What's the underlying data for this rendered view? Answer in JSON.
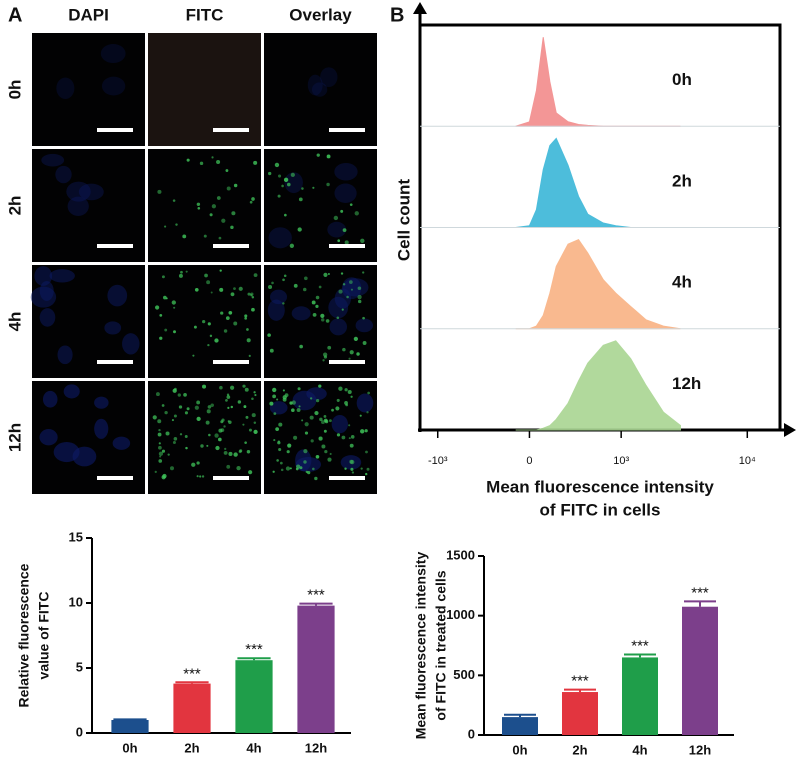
{
  "panel_labels": [
    "A",
    "B"
  ],
  "microscopy": {
    "columns": [
      "DAPI",
      "FITC",
      "Overlay"
    ],
    "rows": [
      "0h",
      "2h",
      "4h",
      "12h"
    ]
  },
  "chart_data": [
    {
      "type": "area",
      "ylabel": "Cell count",
      "xlabel": [
        "Mean fluorescence intensity",
        "of FITC in cells"
      ],
      "x": [
        -100,
        0,
        50,
        100,
        150,
        200,
        300,
        400,
        500,
        700,
        900,
        1200,
        1600,
        2200,
        3000
      ],
      "xlim": [
        -1400,
        18000
      ],
      "xticks": [
        {
          "value": -1000,
          "label": "-10³"
        },
        0,
        {
          "value": 1000,
          "label": "10³"
        },
        {
          "value": 10000,
          "label": "10⁴"
        }
      ],
      "ylim": [
        0,
        100
      ],
      "series": [
        {
          "name": "0h",
          "color": "#f28b8b",
          "values": [
            0,
            5,
            40,
            100,
            50,
            15,
            5,
            2,
            1,
            0,
            0,
            0,
            0,
            0,
            0
          ]
        },
        {
          "name": "2h",
          "color": "#3ab6d8",
          "values": [
            0,
            2,
            20,
            65,
            92,
            100,
            70,
            35,
            15,
            5,
            2,
            0,
            0,
            0,
            0
          ]
        },
        {
          "name": "4h",
          "color": "#f9b283",
          "values": [
            0,
            0,
            3,
            15,
            40,
            70,
            95,
            100,
            85,
            55,
            40,
            25,
            10,
            3,
            0
          ]
        },
        {
          "name": "12h",
          "color": "#a9d592",
          "values": [
            0,
            0,
            0,
            2,
            5,
            12,
            30,
            55,
            75,
            95,
            100,
            80,
            50,
            20,
            5
          ]
        }
      ]
    },
    {
      "type": "bar",
      "ylabel": [
        "Relative fluorescence",
        "value  of FITC"
      ],
      "categories": [
        "0h",
        "2h",
        "4h",
        "12h"
      ],
      "values": [
        1,
        3.8,
        5.6,
        9.8
      ],
      "errors": [
        0.05,
        0.1,
        0.15,
        0.15
      ],
      "colors": [
        "#1c4f8d",
        "#e2353f",
        "#1f9e4a",
        "#7c3f8b"
      ],
      "significance": [
        null,
        "***",
        "***",
        "***"
      ],
      "ylim": [
        0,
        15
      ],
      "yticks": [
        0,
        5,
        10,
        15
      ]
    },
    {
      "type": "bar",
      "ylabel": [
        "Mean fluorescence intensity",
        "of FITC in treated cells"
      ],
      "categories": [
        "0h",
        "2h",
        "4h",
        "12h"
      ],
      "values": [
        150,
        360,
        650,
        1075
      ],
      "errors": [
        20,
        20,
        25,
        45
      ],
      "colors": [
        "#1c4f8d",
        "#e2353f",
        "#1f9e4a",
        "#7c3f8b"
      ],
      "significance": [
        null,
        "***",
        "***",
        "***"
      ],
      "ylim": [
        0,
        1500
      ],
      "yticks": [
        0,
        500,
        1000,
        1500
      ]
    }
  ]
}
